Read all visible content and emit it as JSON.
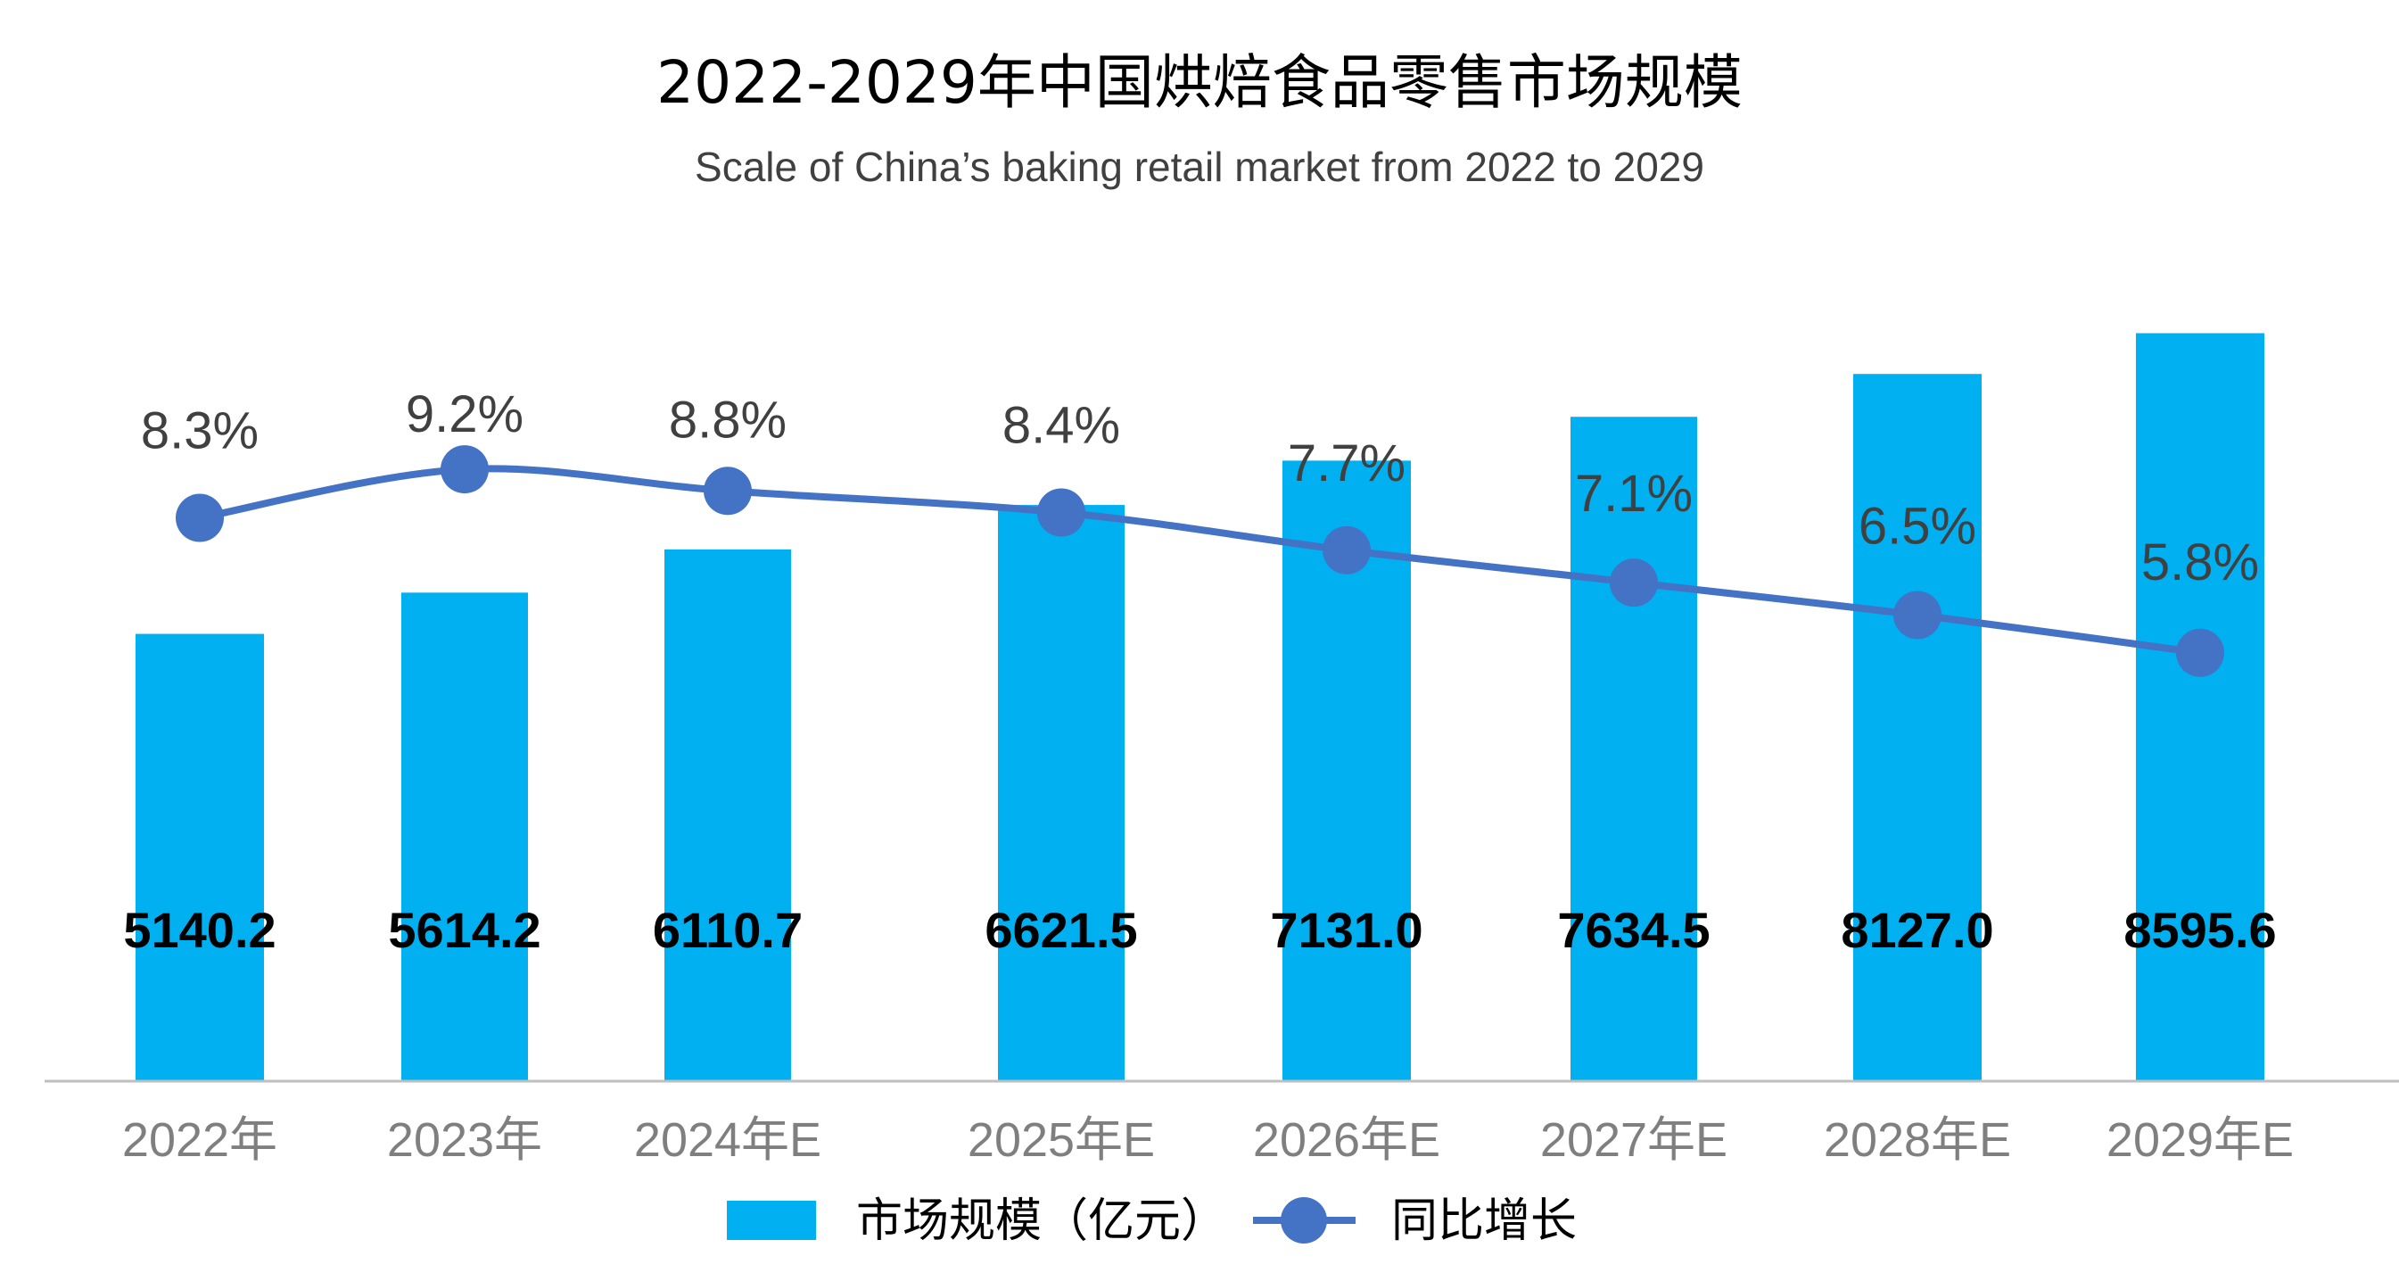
{
  "colors": {
    "bar": "#00B0F0",
    "line": "#4472C4",
    "axis": "#BFBFBF"
  },
  "chart_data": {
    "type": "bar",
    "title": "2022-2029年中国烘焙食品零售市场规模",
    "subtitle": "Scale of China’s baking retail market from 2022 to 2029",
    "categories": [
      "2022年",
      "2023年",
      "2024年E",
      "2025年E",
      "2026年E",
      "2027年E",
      "2028年E",
      "2029年E"
    ],
    "series": [
      {
        "name": "市场规模（亿元）",
        "type": "bar",
        "values": [
          5140.2,
          5614.2,
          6110.7,
          6621.5,
          7131.0,
          7634.5,
          8127.0,
          8595.6
        ],
        "labels": [
          "5140.2",
          "5614.2",
          "6110.7",
          "6621.5",
          "7131.0",
          "7634.5",
          "8127.0",
          "8595.6"
        ]
      },
      {
        "name": "同比增长",
        "type": "line",
        "values": [
          8.3,
          9.2,
          8.8,
          8.4,
          7.7,
          7.1,
          6.5,
          5.8
        ],
        "labels": [
          "8.3%",
          "9.2%",
          "8.8%",
          "8.4%",
          "7.7%",
          "7.1%",
          "6.5%",
          "5.8%"
        ]
      }
    ],
    "legend_position": "bottom",
    "grid": false
  }
}
